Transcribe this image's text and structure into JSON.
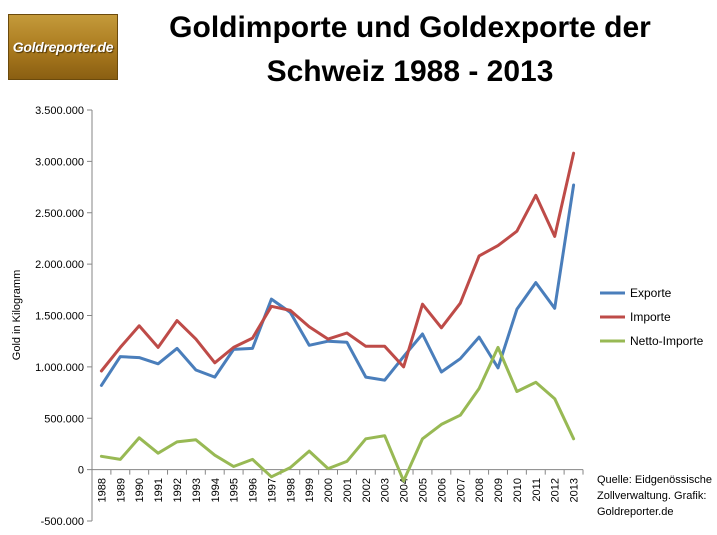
{
  "logo": {
    "text": "Goldreporter.de"
  },
  "title": {
    "line1": "Goldimporte und Goldexporte der",
    "line2": "Schweiz 1988 - 2013"
  },
  "source": {
    "line1": "Quelle: Eidgenössische",
    "line2": "Zollverwaltung. Grafik:",
    "line3": "Goldreporter.de"
  },
  "chart_data": {
    "type": "line",
    "title": "Goldimporte und Goldexporte der Schweiz 1988 - 2013",
    "ylabel": "Gold in Kilogramm",
    "xlabel": "",
    "ylim": [
      -500000,
      3500000
    ],
    "ytick_labels": [
      "-500.000",
      "0",
      "500.000",
      "1.000.000",
      "1.500.000",
      "2.000.000",
      "2.500.000",
      "3.000.000",
      "3.500.000"
    ],
    "ytick_values": [
      -500000,
      0,
      500000,
      1000000,
      1500000,
      2000000,
      2500000,
      3000000,
      3500000
    ],
    "grid": false,
    "legend_position": "right",
    "categories": [
      "1988",
      "1989",
      "1990",
      "1991",
      "1992",
      "1993",
      "1994",
      "1995",
      "1996",
      "1997",
      "1998",
      "1999",
      "2000",
      "2001",
      "2002",
      "2003",
      "2004",
      "2005",
      "2006",
      "2007",
      "2008",
      "2009",
      "2010",
      "2011",
      "2012",
      "2013"
    ],
    "series": [
      {
        "name": "Exporte",
        "color": "#4a7ebb",
        "values": [
          820000,
          1100000,
          1090000,
          1030000,
          1180000,
          970000,
          900000,
          1170000,
          1180000,
          1660000,
          1530000,
          1210000,
          1250000,
          1240000,
          900000,
          870000,
          1100000,
          1320000,
          950000,
          1080000,
          1290000,
          990000,
          1560000,
          1820000,
          1570000,
          2770000
        ]
      },
      {
        "name": "Importe",
        "color": "#be4b48",
        "values": [
          960000,
          1190000,
          1400000,
          1190000,
          1450000,
          1270000,
          1040000,
          1190000,
          1280000,
          1590000,
          1550000,
          1390000,
          1270000,
          1330000,
          1200000,
          1200000,
          1000000,
          1610000,
          1380000,
          1620000,
          2080000,
          2180000,
          2320000,
          2670000,
          2270000,
          3080000
        ]
      },
      {
        "name": "Netto-Importe",
        "color": "#98b954",
        "values": [
          130000,
          100000,
          310000,
          160000,
          270000,
          290000,
          140000,
          30000,
          100000,
          -70000,
          20000,
          180000,
          10000,
          80000,
          300000,
          330000,
          -110000,
          300000,
          440000,
          530000,
          790000,
          1190000,
          760000,
          850000,
          690000,
          300000
        ]
      }
    ]
  }
}
